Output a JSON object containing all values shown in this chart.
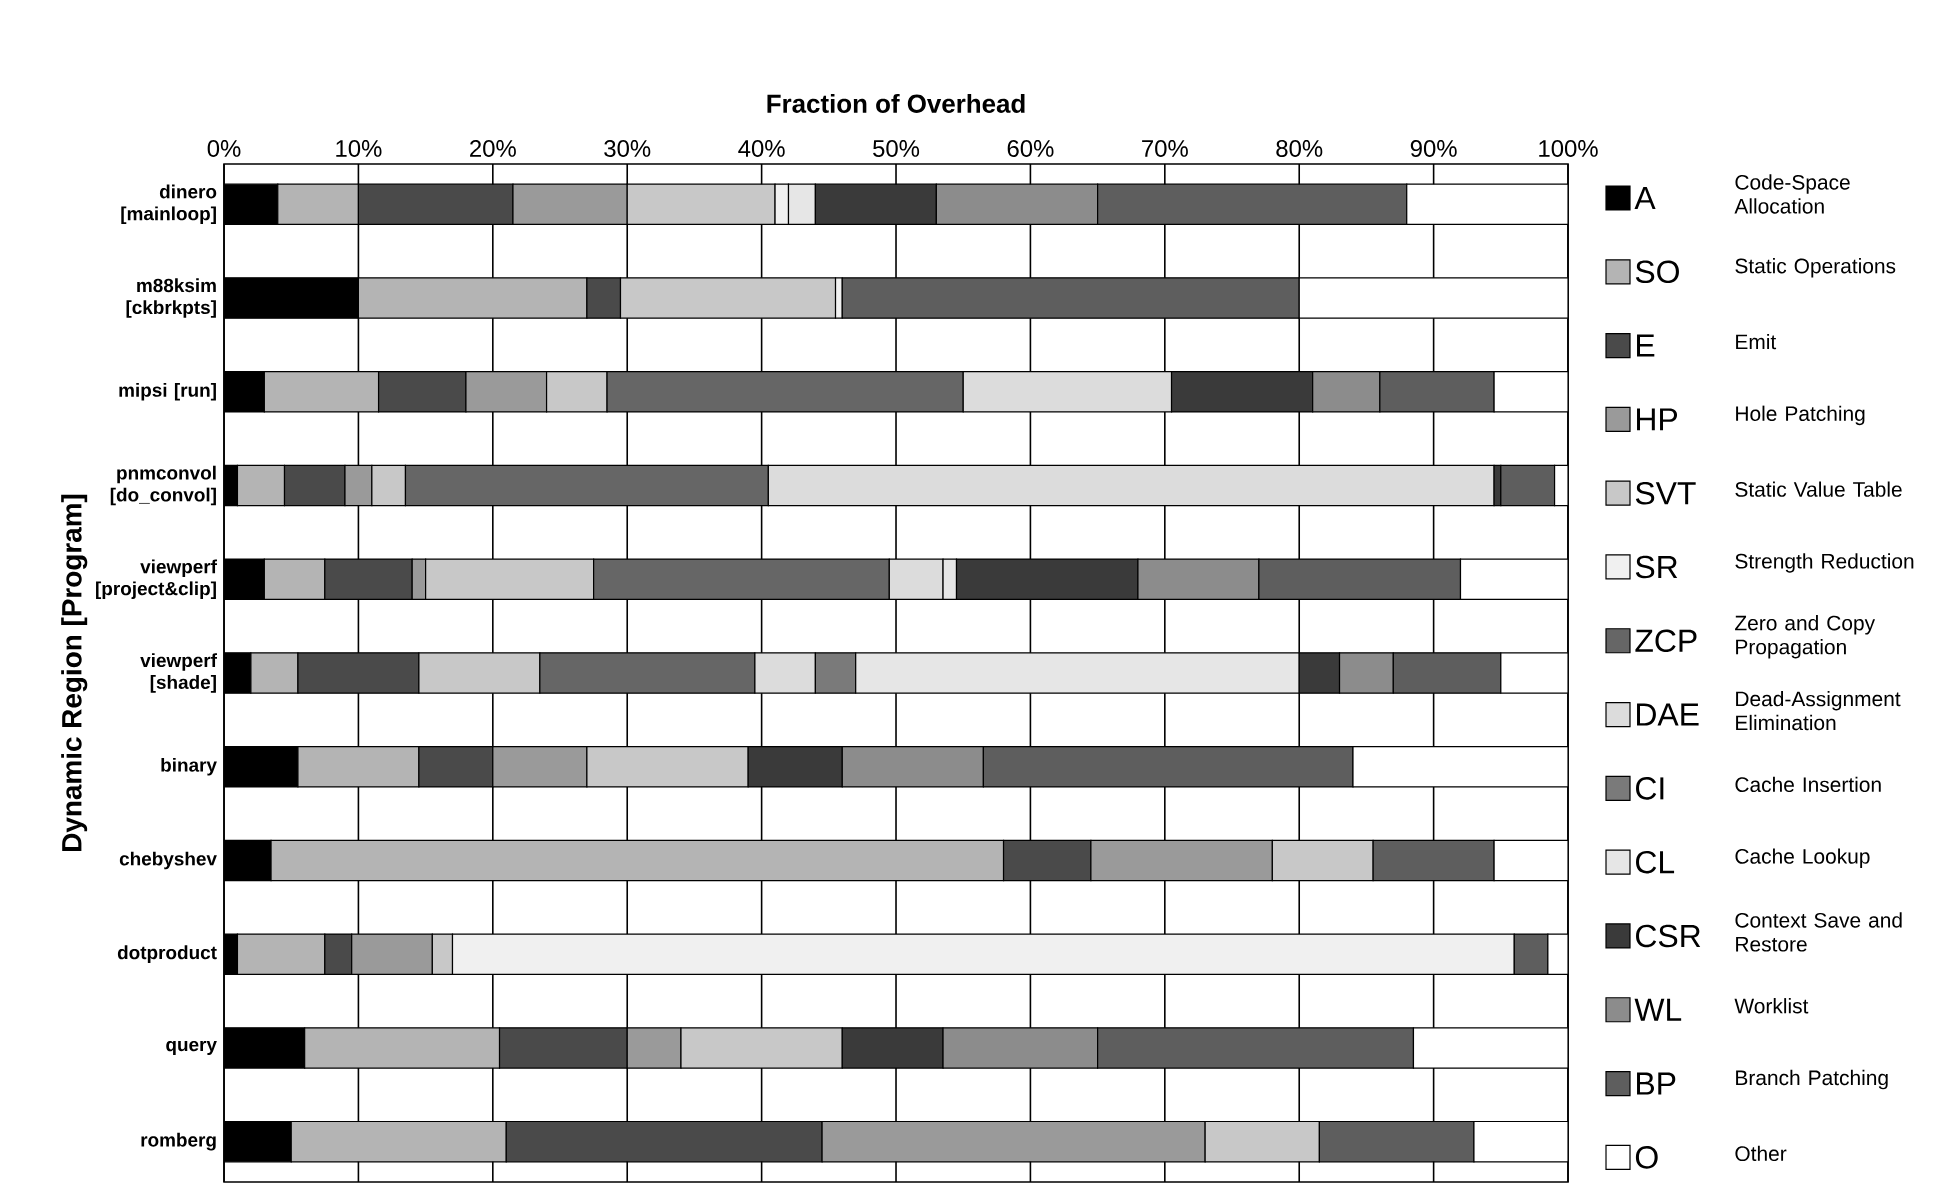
{
  "chart_data": {
    "type": "bar",
    "orientation": "horizontal",
    "stacked": true,
    "xlabel": "Fraction of Overhead",
    "ylabel": "Dynamic Region [Program]",
    "categories": [
      "dinero [mainloop]",
      "m88ksim [ckbrkpts]",
      "mipsi [run]",
      "pnmconvol [do_convol]",
      "viewperf [project&clip]",
      "viewperf [shade]",
      "binary",
      "chebyshev",
      "dotproduct",
      "query",
      "romberg"
    ],
    "xlim": [
      0,
      100
    ],
    "xticks": [
      {
        "value": 0,
        "label": "0%"
      },
      {
        "value": 10,
        "label": "10%"
      },
      {
        "value": 20,
        "label": "20%"
      },
      {
        "value": 30,
        "label": "30%"
      },
      {
        "value": 40,
        "label": "40%"
      },
      {
        "value": 50,
        "label": "50%"
      },
      {
        "value": 60,
        "label": "60%"
      },
      {
        "value": 70,
        "label": "70%"
      },
      {
        "value": 80,
        "label": "80%"
      },
      {
        "value": 90,
        "label": "90%"
      },
      {
        "value": 100,
        "label": "100%"
      }
    ],
    "grid": "x",
    "legend": "right",
    "series": [
      {
        "name": "A",
        "color": "#000000",
        "values": [
          4,
          10,
          3,
          1,
          3,
          2,
          5.5,
          3.5,
          1,
          6,
          5
        ]
      },
      {
        "name": "SO",
        "color": "#b4b4b4",
        "values": [
          6,
          17,
          8.5,
          3.5,
          4.5,
          3.5,
          9,
          54.5,
          6.5,
          14.5,
          16
        ]
      },
      {
        "name": "E",
        "color": "#4a4a4a",
        "values": [
          11.5,
          2.5,
          6.5,
          4.5,
          6.5,
          9,
          5.5,
          6.5,
          2,
          9.5,
          23.5
        ]
      },
      {
        "name": "HP",
        "color": "#9a9a9a",
        "values": [
          8.5,
          0,
          6,
          2,
          1,
          0,
          7,
          13.5,
          6,
          4,
          28.5
        ]
      },
      {
        "name": "SVT",
        "color": "#c8c8c8",
        "values": [
          11,
          16,
          4.5,
          2.5,
          12.5,
          9,
          12,
          7.5,
          1.5,
          12,
          8.5
        ]
      },
      {
        "name": "SR",
        "color": "#f0f0f0",
        "values": [
          1,
          0.5,
          0,
          0,
          0,
          0,
          0,
          0,
          79,
          0,
          0
        ]
      },
      {
        "name": "ZCP",
        "color": "#666666",
        "values": [
          0,
          0,
          26.5,
          27,
          22,
          16,
          0,
          0,
          0,
          0,
          0
        ]
      },
      {
        "name": "DAE",
        "color": "#dcdcdc",
        "values": [
          0,
          0,
          15.5,
          54,
          4,
          4.5,
          0,
          0,
          0,
          0,
          0
        ]
      },
      {
        "name": "CI",
        "color": "#7a7a7a",
        "values": [
          0,
          0,
          0,
          0,
          0,
          3,
          0,
          0,
          0,
          0,
          0
        ]
      },
      {
        "name": "CL",
        "color": "#e6e6e6",
        "values": [
          2,
          0,
          0,
          0,
          1,
          33,
          0,
          0,
          0,
          0,
          0
        ]
      },
      {
        "name": "CSR",
        "color": "#3a3a3a",
        "values": [
          9,
          0,
          10.5,
          0.5,
          13.5,
          3,
          7,
          0,
          0,
          7.5,
          0
        ]
      },
      {
        "name": "WL",
        "color": "#8c8c8c",
        "values": [
          12,
          0,
          5,
          0,
          9,
          4,
          10.5,
          0,
          0,
          11.5,
          0
        ]
      },
      {
        "name": "BP",
        "color": "#5e5e5e",
        "values": [
          23,
          34,
          8.5,
          4,
          15,
          8,
          27.5,
          9,
          2.5,
          23.5,
          11.5
        ]
      },
      {
        "name": "O",
        "color": "#ffffff",
        "values": [
          12,
          20,
          5.5,
          1,
          8,
          5,
          16,
          5.5,
          1.5,
          11.5,
          7
        ]
      }
    ],
    "annotations": [
      "Code-Space Allocation",
      "Static Operations",
      "Emit",
      "Hole Patching",
      "Static Value Table",
      "Strength Reduction",
      "Zero and Copy Propagation",
      "Dead-Assignment Elimination",
      "Cache Insertion",
      "Cache Lookup",
      "Context Save and Restore",
      "Worklist",
      "Branch Patching",
      "Other"
    ]
  }
}
